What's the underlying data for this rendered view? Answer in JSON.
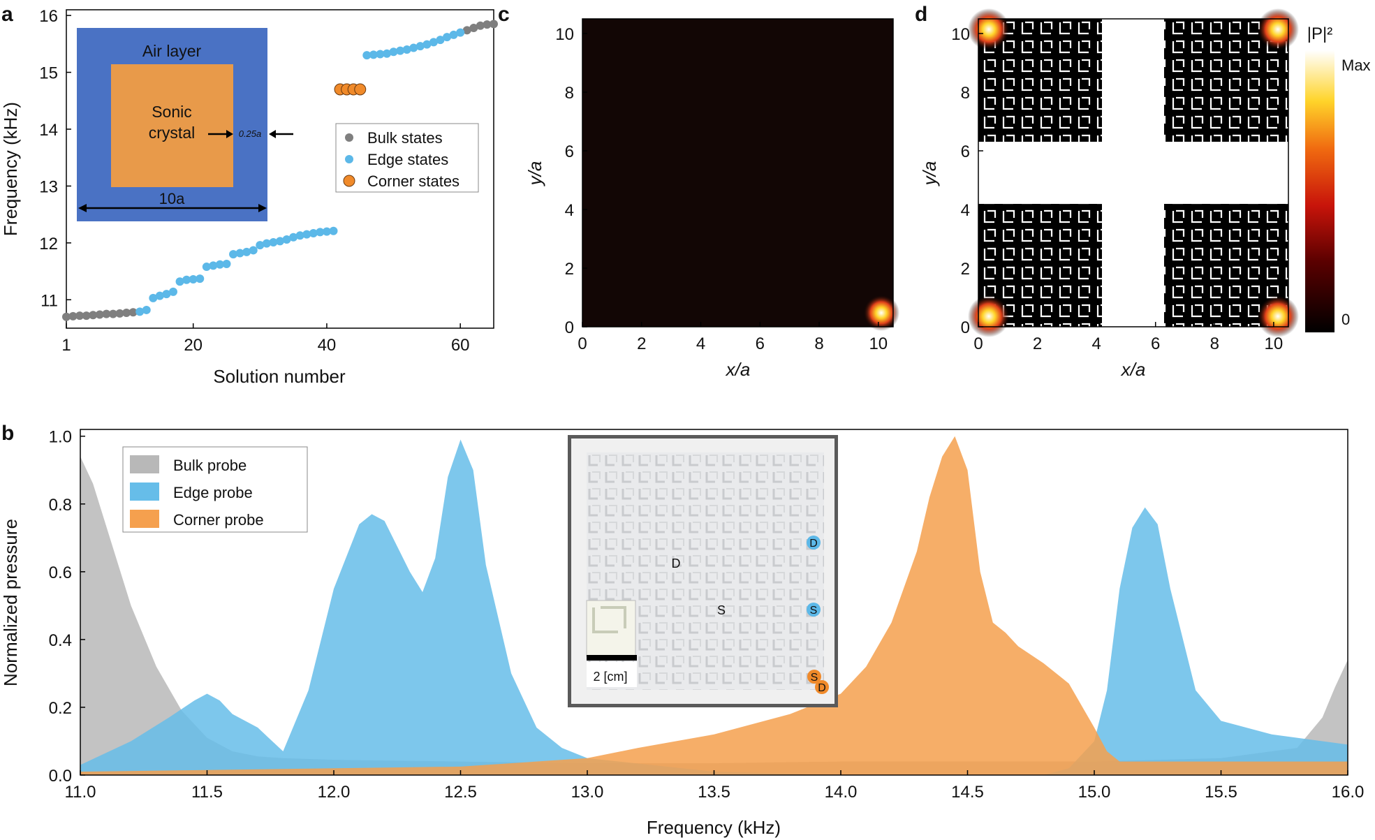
{
  "panel_labels": {
    "a": "a",
    "b": "b",
    "c": "c",
    "d": "d"
  },
  "colors": {
    "bulk": "#7f7f7f",
    "edge": "#5cb8e8",
    "corner": "#f08a2a",
    "inset_air": "#4a72c4",
    "inset_crystal": "#e89a4a",
    "bulk_fill": "#b8b8b8",
    "edge_fill": "#66bde9",
    "corner_fill": "#f5a04e"
  },
  "chart_data": [
    {
      "id": "a",
      "type": "scatter",
      "xlabel": "Solution number",
      "ylabel": "Frequency (kHz)",
      "xlim": [
        1,
        65
      ],
      "ylim": [
        10.5,
        16.1
      ],
      "xticks": [
        1,
        20,
        40,
        60
      ],
      "yticks": [
        11,
        12,
        13,
        14,
        15,
        16
      ],
      "legend": [
        "Bulk states",
        "Edge states",
        "Corner states"
      ],
      "inset": {
        "air": "Air layer",
        "crystal_line1": "Sonic",
        "crystal_line2": "crystal",
        "gap": "0.25a",
        "size": "10a"
      },
      "series": [
        {
          "name": "Bulk states",
          "x": [
            1,
            2,
            3,
            4,
            5,
            6,
            7,
            8,
            9,
            10,
            11,
            61,
            62,
            63,
            64,
            65
          ],
          "y": [
            10.7,
            10.71,
            10.72,
            10.72,
            10.73,
            10.74,
            10.75,
            10.75,
            10.76,
            10.77,
            10.78,
            15.74,
            15.78,
            15.82,
            15.84,
            15.85
          ]
        },
        {
          "name": "Edge states",
          "x": [
            12,
            13,
            14,
            15,
            16,
            17,
            18,
            19,
            20,
            21,
            22,
            23,
            24,
            25,
            26,
            27,
            28,
            29,
            30,
            31,
            32,
            33,
            34,
            35,
            36,
            37,
            38,
            39,
            40,
            41,
            46,
            47,
            48,
            49,
            50,
            51,
            52,
            53,
            54,
            55,
            56,
            57,
            58,
            59,
            60
          ],
          "y": [
            10.79,
            10.82,
            11.03,
            11.07,
            11.1,
            11.14,
            11.32,
            11.35,
            11.36,
            11.37,
            11.58,
            11.6,
            11.62,
            11.63,
            11.8,
            11.82,
            11.84,
            11.87,
            11.96,
            11.99,
            12.01,
            12.03,
            12.06,
            12.1,
            12.13,
            12.15,
            12.17,
            12.19,
            12.2,
            12.21,
            15.3,
            15.31,
            15.32,
            15.33,
            15.36,
            15.38,
            15.4,
            15.43,
            15.46,
            15.49,
            15.53,
            15.57,
            15.62,
            15.66,
            15.7
          ]
        },
        {
          "name": "Corner states",
          "x": [
            42,
            43,
            44,
            45
          ],
          "y": [
            14.7,
            14.7,
            14.7,
            14.7
          ]
        }
      ]
    },
    {
      "id": "b",
      "type": "area",
      "xlabel": "Frequency (kHz)",
      "ylabel": "Normalized pressure",
      "xlim": [
        11.0,
        16.0
      ],
      "ylim": [
        0.0,
        1.02
      ],
      "xticks": [
        11.0,
        11.5,
        12.0,
        12.5,
        13.0,
        13.5,
        14.0,
        14.5,
        15.0,
        15.5,
        16.0
      ],
      "yticks": [
        0.0,
        0.2,
        0.4,
        0.6,
        0.8,
        1.0
      ],
      "legend": [
        "Bulk probe",
        "Edge probe",
        "Corner probe"
      ],
      "photo_labels": {
        "d_bulk": "D",
        "s_bulk": "S",
        "d_edge": "D",
        "s_edge": "S",
        "s_corner": "S",
        "d_corner": "D",
        "scale": "2 [cm]"
      },
      "series": [
        {
          "name": "Bulk probe",
          "x": [
            11.0,
            11.05,
            11.1,
            11.15,
            11.2,
            11.3,
            11.4,
            11.5,
            11.6,
            11.7,
            11.8,
            12.0,
            12.5,
            13.0,
            13.5,
            14.0,
            14.5,
            15.0,
            15.5,
            15.8,
            15.9,
            15.95,
            16.0
          ],
          "y": [
            0.94,
            0.86,
            0.74,
            0.62,
            0.5,
            0.32,
            0.19,
            0.11,
            0.07,
            0.055,
            0.05,
            0.045,
            0.04,
            0.035,
            0.035,
            0.04,
            0.04,
            0.04,
            0.05,
            0.08,
            0.17,
            0.26,
            0.34
          ]
        },
        {
          "name": "Edge probe",
          "x": [
            11.0,
            11.2,
            11.35,
            11.45,
            11.5,
            11.55,
            11.6,
            11.7,
            11.8,
            11.9,
            12.0,
            12.1,
            12.15,
            12.2,
            12.3,
            12.35,
            12.4,
            12.45,
            12.5,
            12.55,
            12.6,
            12.7,
            12.8,
            12.9,
            13.0,
            13.5,
            14.0,
            14.5,
            14.8,
            14.9,
            15.0,
            15.05,
            15.1,
            15.15,
            15.2,
            15.25,
            15.3,
            15.4,
            15.5,
            15.7,
            15.9,
            16.0
          ],
          "y": [
            0.03,
            0.1,
            0.17,
            0.22,
            0.24,
            0.22,
            0.18,
            0.14,
            0.07,
            0.25,
            0.55,
            0.74,
            0.77,
            0.75,
            0.6,
            0.54,
            0.64,
            0.88,
            0.99,
            0.9,
            0.62,
            0.3,
            0.14,
            0.08,
            0.05,
            0.01,
            0.0,
            0.0,
            0.0,
            0.02,
            0.1,
            0.25,
            0.55,
            0.73,
            0.79,
            0.74,
            0.55,
            0.25,
            0.16,
            0.12,
            0.1,
            0.09
          ]
        },
        {
          "name": "Corner probe",
          "x": [
            11.0,
            11.5,
            12.0,
            12.5,
            13.0,
            13.2,
            13.5,
            13.8,
            14.0,
            14.1,
            14.2,
            14.3,
            14.35,
            14.4,
            14.45,
            14.5,
            14.55,
            14.6,
            14.65,
            14.7,
            14.8,
            14.9,
            15.0,
            15.05,
            15.1,
            15.2,
            15.5,
            16.0
          ],
          "y": [
            0.01,
            0.015,
            0.02,
            0.025,
            0.05,
            0.08,
            0.12,
            0.18,
            0.24,
            0.32,
            0.45,
            0.66,
            0.82,
            0.94,
            1.0,
            0.9,
            0.6,
            0.45,
            0.42,
            0.38,
            0.33,
            0.27,
            0.14,
            0.07,
            0.04,
            0.04,
            0.04,
            0.04
          ]
        }
      ]
    },
    {
      "id": "c",
      "type": "heatmap",
      "xlabel": "x/a",
      "ylabel": "y/a",
      "xlim": [
        0,
        10.5
      ],
      "ylim": [
        0,
        10.5
      ],
      "xticks": [
        0,
        2,
        4,
        6,
        8,
        10
      ],
      "yticks": [
        0,
        2,
        4,
        6,
        8,
        10
      ]
    },
    {
      "id": "d",
      "type": "heatmap",
      "xlabel": "x/a",
      "ylabel": "y/a",
      "xlim": [
        0,
        10.5
      ],
      "ylim": [
        0,
        10.5
      ],
      "xticks": [
        0,
        2,
        4,
        6,
        8,
        10
      ],
      "yticks": [
        0,
        2,
        4,
        6,
        8,
        10
      ],
      "colorbar": {
        "title": "|P|²",
        "max_label": "Max",
        "min_label": "0"
      }
    }
  ]
}
